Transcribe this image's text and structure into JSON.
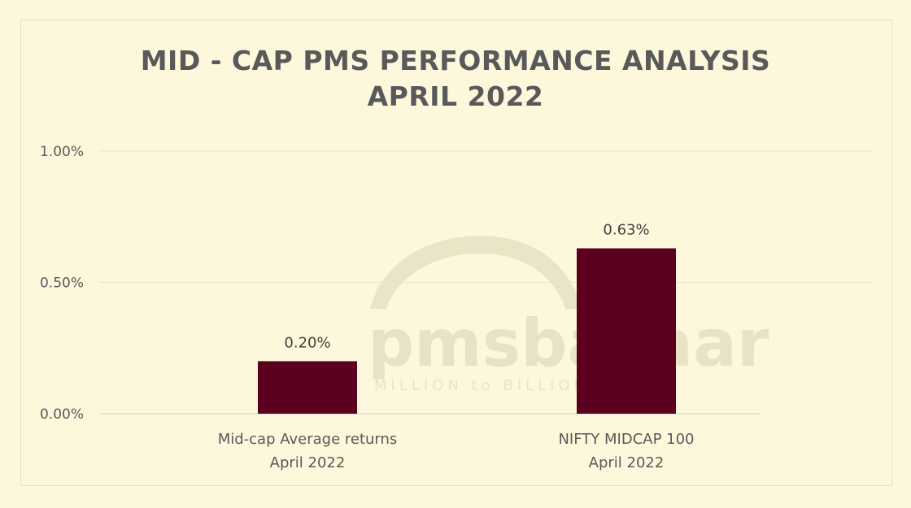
{
  "chart_data": {
    "type": "bar",
    "title_lines": [
      "MID - CAP PMS PERFORMANCE ANALYSIS",
      "APRIL 2022"
    ],
    "categories": [
      [
        "Mid-cap Average returns",
        "April 2022"
      ],
      [
        "NIFTY MIDCAP 100",
        "April 2022"
      ]
    ],
    "values": [
      0.2,
      0.63
    ],
    "data_labels": [
      "0.20%",
      "0.63%"
    ],
    "ylim": [
      0,
      1.0
    ],
    "yticks": [
      {
        "value": 0,
        "label": "0.00%"
      },
      {
        "value": 0.5,
        "label": "0.50%"
      },
      {
        "value": 1.0,
        "label": "1.00%"
      }
    ],
    "bar_color": "#5c0020",
    "grid": true,
    "legend": "none"
  },
  "watermark": {
    "brand": "pmsbazaar",
    "tagline": "MILLION to BILLION"
  }
}
